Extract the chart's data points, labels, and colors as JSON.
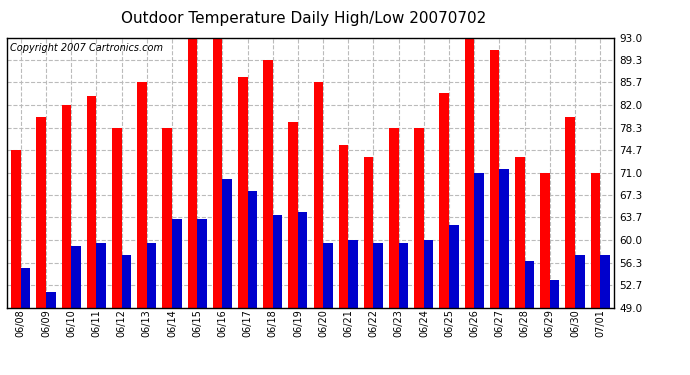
{
  "title": "Outdoor Temperature Daily High/Low 20070702",
  "copyright": "Copyright 2007 Cartronics.com",
  "dates": [
    "06/08",
    "06/09",
    "06/10",
    "06/11",
    "06/12",
    "06/13",
    "06/14",
    "06/15",
    "06/16",
    "06/17",
    "06/18",
    "06/19",
    "06/20",
    "06/21",
    "06/22",
    "06/23",
    "06/24",
    "06/25",
    "06/26",
    "06/27",
    "06/28",
    "06/29",
    "06/30",
    "07/01"
  ],
  "highs": [
    74.7,
    80.0,
    82.0,
    83.5,
    78.3,
    85.7,
    78.3,
    93.0,
    93.0,
    86.5,
    89.3,
    79.3,
    85.7,
    75.5,
    73.5,
    78.3,
    78.3,
    84.0,
    93.0,
    91.0,
    73.5,
    71.0,
    80.0,
    71.0
  ],
  "lows": [
    55.5,
    51.5,
    59.0,
    59.5,
    57.5,
    59.5,
    63.5,
    63.5,
    70.0,
    68.0,
    64.0,
    64.5,
    59.5,
    60.0,
    59.5,
    59.5,
    60.0,
    62.5,
    71.0,
    71.5,
    56.5,
    53.5,
    57.5,
    57.5
  ],
  "high_color": "#ff0000",
  "low_color": "#0000cc",
  "background_color": "#ffffff",
  "plot_bg_color": "#ffffff",
  "grid_color": "#bbbbbb",
  "title_fontsize": 11,
  "copyright_fontsize": 7,
  "yticks": [
    49.0,
    52.7,
    56.3,
    60.0,
    63.7,
    67.3,
    71.0,
    74.7,
    78.3,
    82.0,
    85.7,
    89.3,
    93.0
  ],
  "ymin": 49.0,
  "ymax": 93.0,
  "bar_width": 0.38
}
